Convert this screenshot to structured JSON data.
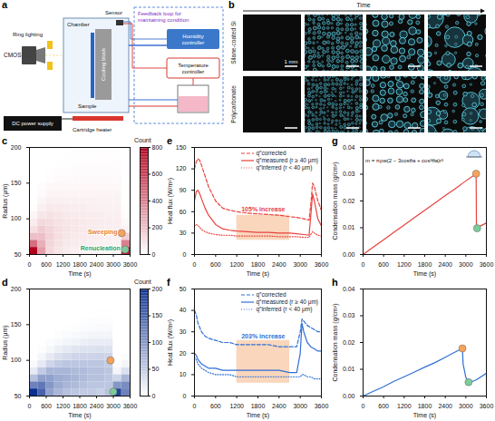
{
  "figure": {
    "a": {
      "panel": "a",
      "schematic": {
        "camera": "CMOS",
        "lighting": "Ring lighting",
        "chamber": "Chamber",
        "cooling_block": "Cooling block",
        "sample": "Sample",
        "sensor": "Sensor",
        "feedback": "Feedback loop for maintaining condition",
        "humidity": "Humidity controller",
        "temperature": "Temperature controller",
        "power": "DC power supply",
        "heater": "Cartridge heater"
      }
    },
    "b": {
      "panel": "b",
      "axis_label": "Time",
      "rows": [
        "Silane-coated Si",
        "Polycarbonate"
      ],
      "scale_bar": "1 mm"
    }
  },
  "chart_data": [
    {
      "panel": "c",
      "type": "heatmap",
      "x_label": "Time (s)",
      "y_label": "Radius (μm)",
      "x_bins": [
        0,
        300,
        600,
        900,
        1200,
        1500,
        1800,
        2100,
        2400,
        2700,
        3000,
        3300,
        3600
      ],
      "y_bins": [
        50,
        60,
        70,
        80,
        90,
        100,
        110,
        120,
        130,
        140,
        150,
        160,
        170,
        180,
        190,
        200
      ],
      "counts": [
        [
          800,
          450,
          200,
          100,
          60,
          30,
          10,
          0,
          0,
          0,
          0,
          0,
          0,
          0,
          0
        ],
        [
          300,
          250,
          200,
          160,
          120,
          80,
          50,
          30,
          15,
          8,
          0,
          0,
          0,
          0,
          0
        ],
        [
          120,
          130,
          140,
          130,
          110,
          90,
          70,
          50,
          35,
          20,
          10,
          5,
          0,
          0,
          0
        ],
        [
          80,
          90,
          100,
          100,
          90,
          80,
          65,
          50,
          35,
          25,
          15,
          8,
          4,
          0,
          0
        ],
        [
          60,
          70,
          80,
          85,
          80,
          70,
          60,
          45,
          35,
          25,
          15,
          10,
          5,
          3,
          0
        ],
        [
          50,
          60,
          70,
          75,
          75,
          65,
          55,
          45,
          35,
          25,
          18,
          12,
          6,
          3,
          2
        ],
        [
          45,
          55,
          65,
          70,
          70,
          60,
          55,
          45,
          35,
          25,
          18,
          12,
          8,
          4,
          2
        ],
        [
          40,
          50,
          60,
          65,
          65,
          60,
          50,
          45,
          35,
          25,
          18,
          12,
          8,
          5,
          3
        ],
        [
          40,
          45,
          55,
          60,
          60,
          55,
          50,
          40,
          35,
          25,
          18,
          12,
          8,
          5,
          3
        ],
        [
          35,
          45,
          50,
          55,
          55,
          50,
          45,
          40,
          30,
          25,
          18,
          12,
          8,
          5,
          3
        ],
        [
          35,
          40,
          50,
          55,
          55,
          50,
          45,
          40,
          30,
          25,
          18,
          12,
          8,
          5,
          3
        ],
        [
          700,
          400,
          150,
          40,
          20,
          10,
          5,
          0,
          0,
          0,
          0,
          0,
          0,
          0,
          0
        ]
      ],
      "color": "#b2001c",
      "colorbar": {
        "label": "Count",
        "range": [
          0,
          800
        ],
        "ticks": [
          0,
          200,
          400,
          600,
          800
        ]
      },
      "xlim": [
        0,
        3600
      ],
      "xticks": [
        0,
        600,
        1200,
        1800,
        2400,
        3000,
        3600
      ],
      "ylim": [
        50,
        200
      ],
      "yticks": [
        50,
        100,
        150,
        200
      ],
      "annotations": [
        {
          "text": "Sweeping",
          "x": 3150,
          "y": 82,
          "color": "#e8812f"
        },
        {
          "text": "Renucleation",
          "x": 3250,
          "y": 58,
          "color": "#2e9e5e"
        }
      ],
      "markers": [
        {
          "x": 3300,
          "y": 80,
          "color": "#f5a35c"
        },
        {
          "x": 3420,
          "y": 57,
          "color": "#7ccc9a"
        }
      ]
    },
    {
      "panel": "d",
      "type": "heatmap",
      "x_label": "Time (s)",
      "y_label": "Radius (μm)",
      "x_bins": [
        0,
        300,
        600,
        900,
        1200,
        1500,
        1800,
        2100,
        2400,
        2700,
        3000,
        3300,
        3600
      ],
      "y_bins": [
        50,
        60,
        70,
        80,
        90,
        100,
        110,
        120,
        130,
        140,
        150,
        160,
        170,
        180,
        190,
        200
      ],
      "counts": [
        [
          200,
          120,
          60,
          20,
          5,
          0,
          0,
          0,
          0,
          0,
          0,
          0,
          0,
          0,
          0
        ],
        [
          150,
          130,
          90,
          50,
          20,
          8,
          2,
          0,
          0,
          0,
          0,
          0,
          0,
          0,
          0
        ],
        [
          90,
          100,
          90,
          70,
          40,
          20,
          8,
          3,
          0,
          0,
          0,
          0,
          0,
          0,
          0
        ],
        [
          70,
          80,
          80,
          70,
          50,
          30,
          15,
          6,
          2,
          0,
          0,
          0,
          0,
          0,
          0
        ],
        [
          60,
          70,
          75,
          70,
          55,
          35,
          20,
          10,
          4,
          1,
          0,
          0,
          0,
          0,
          0
        ],
        [
          55,
          65,
          70,
          65,
          55,
          40,
          25,
          12,
          6,
          2,
          0,
          0,
          0,
          0,
          0
        ],
        [
          50,
          60,
          65,
          65,
          55,
          40,
          28,
          15,
          8,
          3,
          1,
          0,
          0,
          0,
          0
        ],
        [
          50,
          55,
          60,
          60,
          55,
          40,
          28,
          18,
          10,
          4,
          2,
          0,
          0,
          0,
          0
        ],
        [
          45,
          55,
          60,
          60,
          55,
          42,
          30,
          18,
          10,
          5,
          2,
          1,
          0,
          0,
          0
        ],
        [
          60,
          55,
          55,
          55,
          50,
          40,
          28,
          18,
          10,
          5,
          2,
          1,
          0,
          0,
          0
        ],
        [
          180,
          100,
          40,
          10,
          3,
          0,
          0,
          0,
          0,
          0,
          0,
          0,
          0,
          0,
          0
        ],
        [
          120,
          110,
          70,
          30,
          10,
          3,
          0,
          0,
          0,
          0,
          0,
          0,
          0,
          0,
          0
        ]
      ],
      "color": "#0b2f8f",
      "colorbar": {
        "label": "Count",
        "range": [
          0,
          200
        ],
        "ticks": [
          0,
          50,
          100,
          150,
          200
        ]
      },
      "xlim": [
        0,
        3600
      ],
      "xticks": [
        0,
        600,
        1200,
        1800,
        2400,
        3000,
        3600
      ],
      "ylim": [
        50,
        200
      ],
      "yticks": [
        50,
        100,
        150,
        200
      ],
      "markers": [
        {
          "x": 2900,
          "y": 100,
          "color": "#f5a35c"
        },
        {
          "x": 3000,
          "y": 56,
          "color": "#7ccc9a"
        }
      ]
    },
    {
      "panel": "e",
      "type": "line",
      "x_label": "Time (s)",
      "y_label": "Heat flux (W/m²)",
      "x": [
        0,
        50,
        100,
        150,
        200,
        300,
        400,
        600,
        800,
        1000,
        1200,
        1500,
        1800,
        2100,
        2400,
        2700,
        2900,
        3100,
        3250,
        3300,
        3350,
        3400,
        3500,
        3600
      ],
      "series": [
        {
          "name": "q″corrected",
          "color": "#e8423f",
          "line_style": "dashed",
          "values": [
            120,
            130,
            134,
            132,
            125,
            110,
            95,
            75,
            65,
            62,
            60,
            58,
            57,
            56,
            55,
            53,
            52,
            50,
            48,
            70,
            100,
            95,
            75,
            62
          ]
        },
        {
          "name": "q″measured (r ≥ 40 μm)",
          "color": "#e8423f",
          "line_style": "solid",
          "values": [
            75,
            88,
            90,
            85,
            78,
            65,
            55,
            42,
            36,
            34,
            33,
            32,
            31,
            31,
            30,
            30,
            29,
            28,
            27,
            55,
            85,
            75,
            50,
            40
          ]
        },
        {
          "name": "q″inferred (r < 40 μm)",
          "color": "#e8423f",
          "line_style": "dotted",
          "values": [
            40,
            42,
            41,
            38,
            35,
            32,
            30,
            28,
            27,
            27,
            26,
            26,
            26,
            26,
            25,
            25,
            25,
            24,
            24,
            28,
            32,
            30,
            27,
            26
          ]
        }
      ],
      "xlim": [
        0,
        3600
      ],
      "xticks": [
        0,
        600,
        1200,
        1800,
        2400,
        3000,
        3600
      ],
      "ylim": [
        0,
        150
      ],
      "yticks": [
        0,
        30,
        60,
        90,
        120,
        150
      ],
      "legend": "top-right",
      "highlight": {
        "x": [
          1200,
          2700
        ],
        "y": [
          20,
          55
        ],
        "color": "#f7c59f"
      },
      "annotations": [
        {
          "text": "105% increase",
          "x": 1950,
          "y": 60,
          "color": "#e8423f"
        }
      ]
    },
    {
      "panel": "f",
      "type": "line",
      "x_label": "Time (s)",
      "y_label": "Heat flux (W/m²)",
      "x": [
        0,
        50,
        100,
        200,
        300,
        400,
        600,
        800,
        1000,
        1200,
        1500,
        1800,
        2100,
        2400,
        2700,
        2900,
        3000,
        3050,
        3100,
        3200,
        3300,
        3400,
        3500,
        3600
      ],
      "series": [
        {
          "name": "q″corrected",
          "color": "#2f6fd6",
          "line_style": "dashed",
          "values": [
            40,
            38,
            34,
            30,
            28,
            27,
            26,
            25,
            25,
            24,
            24,
            24,
            24,
            23,
            23,
            23,
            30,
            36,
            35,
            33,
            32,
            31,
            30,
            30
          ]
        },
        {
          "name": "q″measured (r ≥ 40 μm)",
          "color": "#2f6fd6",
          "line_style": "solid",
          "values": [
            20,
            19,
            17,
            15,
            14,
            13,
            13,
            12,
            12,
            12,
            12,
            12,
            12,
            12,
            11,
            11,
            20,
            34,
            30,
            25,
            23,
            22,
            21,
            21
          ]
        },
        {
          "name": "q″inferred (r < 40 μm)",
          "color": "#2f6fd6",
          "line_style": "dotted",
          "values": [
            18,
            17,
            15,
            13,
            12,
            11,
            10,
            10,
            10,
            9,
            9,
            9,
            9,
            9,
            9,
            9,
            9,
            10,
            10,
            9,
            9,
            8,
            8,
            8
          ]
        }
      ],
      "xlim": [
        0,
        3600
      ],
      "xticks": [
        0,
        600,
        1200,
        1800,
        2400,
        3000,
        3600
      ],
      "ylim": [
        0,
        50
      ],
      "yticks": [
        0,
        10,
        20,
        30,
        40,
        50
      ],
      "legend": "top-right",
      "highlight": {
        "x": [
          1200,
          2700
        ],
        "y": [
          6,
          26
        ],
        "color": "#f7c59f"
      },
      "annotations": [
        {
          "text": "203% increase",
          "x": 1950,
          "y": 27,
          "color": "#2f6fd6"
        }
      ]
    },
    {
      "panel": "g",
      "type": "line",
      "x_label": "Time (s)",
      "y_label": "Condensation mass (g/cm²)",
      "x": [
        0,
        300,
        600,
        900,
        1200,
        1500,
        1800,
        2100,
        2400,
        2700,
        3000,
        3300,
        3310,
        3450,
        3600
      ],
      "values": [
        0,
        0.0028,
        0.0055,
        0.0083,
        0.011,
        0.0138,
        0.0165,
        0.0192,
        0.022,
        0.0247,
        0.0275,
        0.0302,
        0.0098,
        0.0108,
        0.0118
      ],
      "color": "#e8423f",
      "xlim": [
        0,
        3600
      ],
      "xticks": [
        0,
        600,
        1200,
        1800,
        2400,
        3000,
        3600
      ],
      "ylim": [
        0,
        0.04
      ],
      "yticks": [
        {
          "value": 0,
          "label": "0.00"
        },
        {
          "value": 0.01,
          "label": "0.01"
        },
        {
          "value": 0.02,
          "label": "0.02"
        },
        {
          "value": 0.03,
          "label": "0.03"
        },
        {
          "value": 0.04,
          "label": "0.04"
        }
      ],
      "inset_text": "m = πρw(2 − 3cosθa + cos³θa)r³",
      "markers": [
        {
          "x": 3300,
          "y": 0.0302,
          "color": "#f5a35c"
        },
        {
          "x": 3330,
          "y": 0.0098,
          "color": "#7ccc9a"
        }
      ]
    },
    {
      "panel": "h",
      "type": "line",
      "x_label": "Time (s)",
      "y_label": "Condensation mass (g/cm²)",
      "x": [
        0,
        300,
        600,
        900,
        1200,
        1500,
        1800,
        2100,
        2400,
        2700,
        2900,
        2920,
        3000,
        3100,
        3300,
        3600
      ],
      "values": [
        0,
        0.0018,
        0.0035,
        0.0055,
        0.0072,
        0.009,
        0.0108,
        0.0125,
        0.0145,
        0.0165,
        0.0178,
        0.012,
        0.007,
        0.005,
        0.006,
        0.0085
      ],
      "color": "#2f6fd6",
      "xlim": [
        0,
        3600
      ],
      "xticks": [
        0,
        600,
        1200,
        1800,
        2400,
        3000,
        3600
      ],
      "ylim": [
        0,
        0.04
      ],
      "yticks": [
        {
          "value": 0,
          "label": "0.00"
        },
        {
          "value": 0.01,
          "label": "0.01"
        },
        {
          "value": 0.02,
          "label": "0.02"
        },
        {
          "value": 0.03,
          "label": "0.03"
        },
        {
          "value": 0.04,
          "label": "0.04"
        }
      ],
      "markers": [
        {
          "x": 2900,
          "y": 0.0178,
          "color": "#f5a35c"
        },
        {
          "x": 3080,
          "y": 0.0052,
          "color": "#7ccc9a"
        }
      ]
    }
  ]
}
